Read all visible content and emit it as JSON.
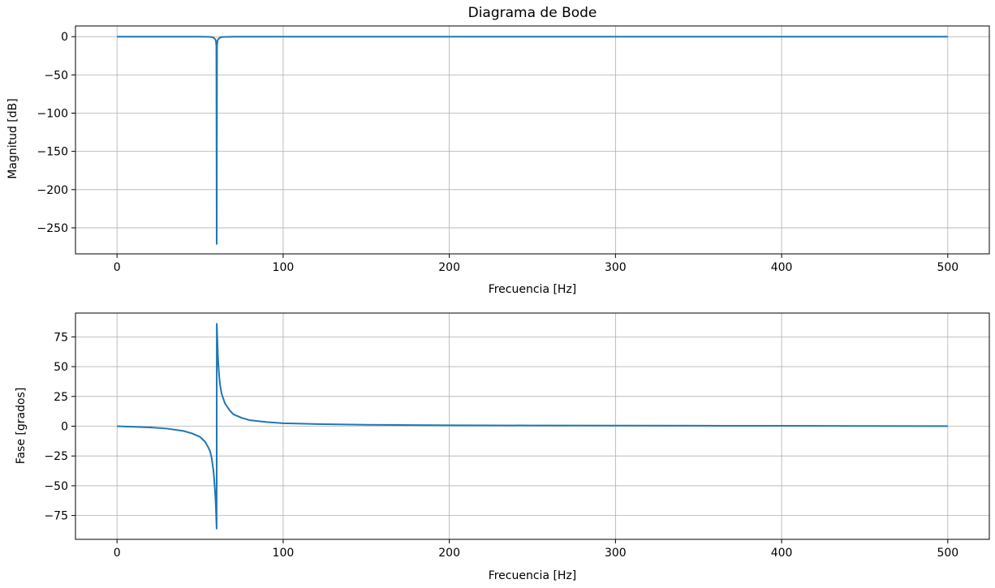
{
  "chart_data": [
    {
      "type": "line",
      "title": "Diagrama de Bode",
      "xlabel": "Frecuencia [Hz]",
      "ylabel": "Magnitud [dB]",
      "xlim": [
        -25,
        525
      ],
      "ylim": [
        -284,
        14
      ],
      "xticks": [
        0,
        100,
        200,
        300,
        400,
        500
      ],
      "xtick_labels": [
        "0",
        "100",
        "200",
        "300",
        "400",
        "500"
      ],
      "yticks": [
        0,
        -50,
        -100,
        -150,
        -200,
        -250
      ],
      "ytick_labels": [
        "0",
        "−50",
        "−100",
        "−150",
        "−200",
        "−250"
      ],
      "grid": true,
      "line_color": "#1f77b4",
      "series": [
        {
          "x": [
            0,
            20,
            40,
            50,
            55,
            57,
            58,
            59,
            59.5,
            59.8,
            60,
            60.2,
            60.5,
            61,
            62,
            63,
            65,
            70,
            80,
            100,
            150,
            200,
            300,
            400,
            500
          ],
          "values": [
            0,
            0,
            -0.01,
            -0.05,
            -0.2,
            -0.6,
            -1.2,
            -3,
            -5.5,
            -12,
            -271,
            -12,
            -5.5,
            -3,
            -1.2,
            -0.6,
            -0.25,
            -0.06,
            -0.02,
            0,
            0,
            0,
            0,
            0,
            0
          ]
        }
      ]
    },
    {
      "type": "line",
      "title": "",
      "xlabel": "Frecuencia [Hz]",
      "ylabel": "Fase [grados]",
      "xlim": [
        -25,
        525
      ],
      "ylim": [
        -95,
        95
      ],
      "xticks": [
        0,
        100,
        200,
        300,
        400,
        500
      ],
      "xtick_labels": [
        "0",
        "100",
        "200",
        "300",
        "400",
        "500"
      ],
      "yticks": [
        75,
        50,
        25,
        0,
        -25,
        -50,
        -75
      ],
      "ytick_labels": [
        "75",
        "50",
        "25",
        "0",
        "−25",
        "−50",
        "−75"
      ],
      "grid": true,
      "line_color": "#1f77b4",
      "series": [
        {
          "x": [
            0,
            10,
            20,
            30,
            40,
            45,
            50,
            53,
            55,
            56,
            57,
            58,
            58.5,
            59,
            59.3,
            59.6,
            59.8,
            59.95,
            60,
            60.05,
            60.2,
            60.4,
            60.7,
            61,
            61.5,
            62,
            63,
            65,
            68,
            70,
            75,
            80,
            90,
            100,
            120,
            150,
            200,
            250,
            300,
            350,
            400,
            450,
            500
          ],
          "values": [
            0,
            -0.5,
            -1,
            -2,
            -4,
            -6,
            -9,
            -13,
            -18,
            -21,
            -27,
            -37,
            -45,
            -55,
            -62,
            -72,
            -80,
            -86,
            0,
            86,
            80,
            72,
            60,
            52,
            42,
            35,
            27,
            19,
            13,
            10,
            7,
            5,
            3.5,
            2.5,
            1.8,
            1.2,
            0.8,
            0.6,
            0.5,
            0.4,
            0.3,
            0.2,
            0.1
          ]
        }
      ]
    }
  ]
}
